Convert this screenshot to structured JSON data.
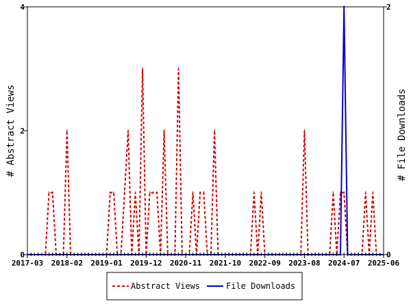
{
  "chart_data": {
    "type": "line",
    "title": "",
    "y_left_label": "# Abstract Views",
    "y_right_label": "# File Downloads",
    "y_left_lim": [
      0,
      4
    ],
    "y_right_lim": [
      0,
      2
    ],
    "y_left_ticks": [
      "0",
      "2",
      "4"
    ],
    "y_right_ticks": [
      "0",
      "2"
    ],
    "x_tick_labels": [
      "2017-03",
      "2018-02",
      "2019-01",
      "2019-12",
      "2020-11",
      "2021-10",
      "2022-09",
      "2023-08",
      "2024-07",
      "2025-06"
    ],
    "grid": false,
    "legend_position": "bottom",
    "x": [
      "2017-03",
      "2017-04",
      "2017-05",
      "2017-06",
      "2017-07",
      "2017-08",
      "2017-09",
      "2017-10",
      "2017-11",
      "2017-12",
      "2018-01",
      "2018-02",
      "2018-03",
      "2018-04",
      "2018-05",
      "2018-06",
      "2018-07",
      "2018-08",
      "2018-09",
      "2018-10",
      "2018-11",
      "2018-12",
      "2019-01",
      "2019-02",
      "2019-03",
      "2019-04",
      "2019-05",
      "2019-06",
      "2019-07",
      "2019-08",
      "2019-09",
      "2019-10",
      "2019-11",
      "2019-12",
      "2020-01",
      "2020-02",
      "2020-03",
      "2020-04",
      "2020-05",
      "2020-06",
      "2020-07",
      "2020-08",
      "2020-09",
      "2020-10",
      "2020-11",
      "2020-12",
      "2021-01",
      "2021-02",
      "2021-03",
      "2021-04",
      "2021-05",
      "2021-06",
      "2021-07",
      "2021-08",
      "2021-09",
      "2021-10",
      "2021-11",
      "2021-12",
      "2022-01",
      "2022-02",
      "2022-03",
      "2022-04",
      "2022-05",
      "2022-06",
      "2022-07",
      "2022-08",
      "2022-09",
      "2022-10",
      "2022-11",
      "2022-12",
      "2023-01",
      "2023-02",
      "2023-03",
      "2023-04",
      "2023-05",
      "2023-06",
      "2023-07",
      "2023-08",
      "2023-09",
      "2023-10",
      "2023-11",
      "2023-12",
      "2024-01",
      "2024-02",
      "2024-03",
      "2024-04",
      "2024-05",
      "2024-06",
      "2024-07",
      "2024-08",
      "2024-09",
      "2024-10",
      "2024-11",
      "2024-12",
      "2025-01",
      "2025-02",
      "2025-03",
      "2025-04",
      "2025-05",
      "2025-06"
    ],
    "series": [
      {
        "name": "Abstract Views",
        "axis": "left",
        "color": "#cc0000",
        "dash": true,
        "values": [
          0,
          0,
          0,
          0,
          0,
          0,
          1,
          1,
          0,
          0,
          0,
          2,
          0,
          0,
          0,
          0,
          0,
          0,
          0,
          0,
          0,
          0,
          0,
          1,
          1,
          0,
          0,
          1,
          2,
          0,
          1,
          0,
          3,
          0,
          1,
          1,
          1,
          0,
          2,
          0,
          0,
          0,
          3,
          0,
          0,
          0,
          1,
          0,
          1,
          1,
          0,
          0,
          2,
          0,
          0,
          0,
          0,
          0,
          0,
          0,
          0,
          0,
          0,
          1,
          0,
          1,
          0,
          0,
          0,
          0,
          0,
          0,
          0,
          0,
          0,
          0,
          0,
          2,
          0,
          0,
          0,
          0,
          0,
          0,
          0,
          1,
          0,
          1,
          1,
          0,
          0,
          0,
          0,
          0,
          1,
          0,
          1,
          0,
          0,
          0
        ]
      },
      {
        "name": "File Downloads",
        "axis": "right",
        "color": "#0000cc",
        "dash": false,
        "values": [
          0,
          0,
          0,
          0,
          0,
          0,
          0,
          0,
          0,
          0,
          0,
          0,
          0,
          0,
          0,
          0,
          0,
          0,
          0,
          0,
          0,
          0,
          0,
          0,
          0,
          0,
          0,
          0,
          0,
          0,
          0,
          0,
          0,
          0,
          0,
          0,
          0,
          0,
          0,
          0,
          0,
          0,
          0,
          0,
          0,
          0,
          0,
          0,
          0,
          0,
          0,
          0,
          0,
          0,
          0,
          0,
          0,
          0,
          0,
          0,
          0,
          0,
          0,
          0,
          0,
          0,
          0,
          0,
          0,
          0,
          0,
          0,
          0,
          0,
          0,
          0,
          0,
          0,
          0,
          0,
          0,
          0,
          0,
          0,
          0,
          0,
          0,
          0,
          2,
          0,
          0,
          0,
          0,
          0,
          0,
          0,
          0,
          0,
          0,
          0
        ]
      }
    ]
  }
}
